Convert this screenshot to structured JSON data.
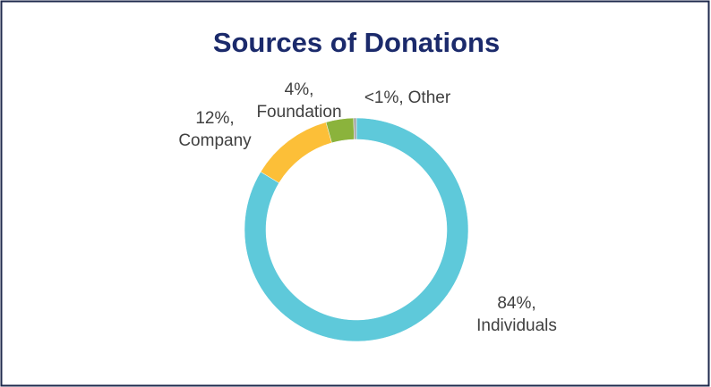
{
  "chart_data": {
    "type": "donut",
    "title": "Sources of Donations",
    "categories": [
      "Individuals",
      "Company",
      "Foundation",
      "Other"
    ],
    "values": [
      84,
      12,
      4,
      0.4
    ],
    "value_labels": [
      "84%,",
      "12%,",
      "4%,",
      "<1%,"
    ],
    "colors": [
      "#5ec9da",
      "#fcbf38",
      "#8bb33c",
      "#a5a5a5"
    ]
  }
}
